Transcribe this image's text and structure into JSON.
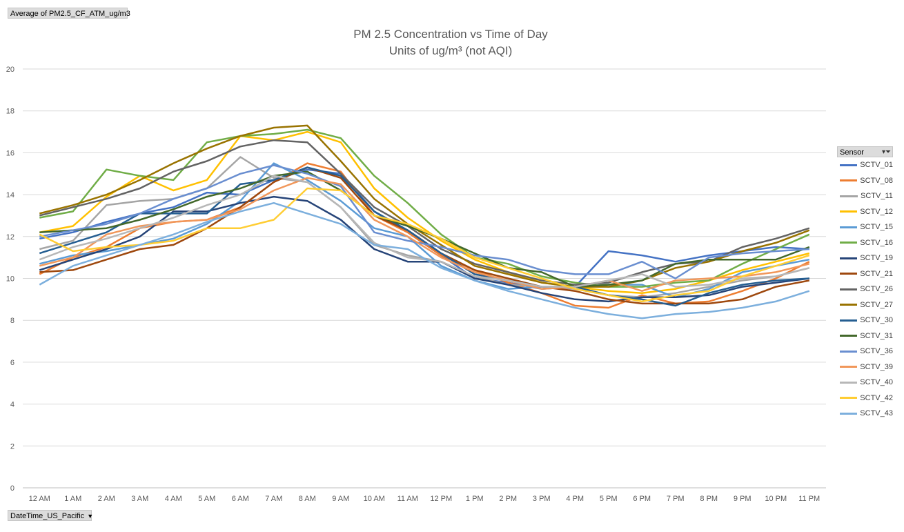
{
  "value_field_label": "Average of PM2.5_CF_ATM_ug/m3",
  "axis_field_label": "DateTime_US_Pacific",
  "axis_field_arrow": "▼",
  "legend": {
    "header": "Sensor",
    "filter_icon": "▾⏷"
  },
  "chart_data": {
    "type": "line",
    "title": "PM 2.5 Concentration vs Time of Day",
    "subtitle": "Units of ug/m³ (not AQI)",
    "xlabel": "",
    "ylabel": "",
    "ylim": [
      0,
      20
    ],
    "yticks": [
      0,
      2,
      4,
      6,
      8,
      10,
      12,
      14,
      16,
      18,
      20
    ],
    "grid": true,
    "legend_position": "right",
    "categories": [
      "12 AM",
      "1 AM",
      "2 AM",
      "3 AM",
      "4 AM",
      "5 AM",
      "6 AM",
      "7 AM",
      "8 AM",
      "9 AM",
      "10 AM",
      "11 AM",
      "12 PM",
      "1 PM",
      "2 PM",
      "3 PM",
      "4 PM",
      "5 PM",
      "6 PM",
      "7 PM",
      "8 PM",
      "9 PM",
      "10 PM",
      "11 PM"
    ],
    "series": [
      {
        "name": "SCTV_01",
        "color": "#4472c4",
        "values": [
          11.9,
          12.2,
          12.7,
          13.1,
          13.4,
          14.1,
          14.0,
          14.7,
          15.2,
          15.0,
          13.2,
          12.2,
          11.1,
          10.0,
          9.8,
          9.5,
          9.6,
          11.3,
          11.1,
          10.8,
          11.1,
          11.3,
          11.5,
          11.4
        ]
      },
      {
        "name": "SCTV_08",
        "color": "#ed7d31",
        "values": [
          10.2,
          11.0,
          11.5,
          12.4,
          12.7,
          12.8,
          13.4,
          14.6,
          15.5,
          15.1,
          13.0,
          12.2,
          11.1,
          10.4,
          9.8,
          9.3,
          8.7,
          8.6,
          9.2,
          8.8,
          8.9,
          9.4,
          10.0,
          10.8
        ]
      },
      {
        "name": "SCTV_11",
        "color": "#a5a5a5",
        "values": [
          11.4,
          11.8,
          13.5,
          13.7,
          13.8,
          14.3,
          15.8,
          14.8,
          14.6,
          13.4,
          11.6,
          11.1,
          10.8,
          10.1,
          9.7,
          9.6,
          9.5,
          9.2,
          9.1,
          9.3,
          9.6,
          9.9,
          10.1,
          10.5
        ]
      },
      {
        "name": "SCTV_12",
        "color": "#ffc000",
        "values": [
          12.2,
          12.5,
          13.9,
          14.9,
          14.2,
          14.7,
          16.8,
          16.6,
          17.0,
          16.5,
          14.3,
          12.9,
          11.8,
          10.9,
          10.3,
          9.8,
          9.6,
          9.4,
          9.3,
          9.5,
          9.9,
          10.4,
          10.8,
          11.2
        ]
      },
      {
        "name": "SCTV_15",
        "color": "#5b9bd5",
        "values": [
          10.7,
          11.1,
          11.3,
          11.6,
          11.9,
          12.6,
          13.7,
          15.5,
          14.7,
          13.7,
          12.4,
          12.0,
          10.6,
          9.9,
          9.5,
          9.6,
          9.6,
          9.7,
          9.7,
          9.1,
          9.5,
          10.3,
          10.6,
          10.9
        ]
      },
      {
        "name": "SCTV_16",
        "color": "#70ad47",
        "values": [
          12.9,
          13.2,
          15.2,
          14.9,
          14.7,
          16.5,
          16.8,
          16.9,
          17.1,
          16.7,
          14.9,
          13.6,
          12.1,
          11.0,
          10.7,
          10.1,
          9.8,
          9.6,
          9.6,
          9.8,
          9.9,
          10.7,
          11.4,
          12.1
        ]
      },
      {
        "name": "SCTV_19",
        "color": "#264478",
        "values": [
          10.4,
          10.9,
          11.4,
          12.0,
          13.2,
          13.2,
          13.6,
          13.9,
          13.7,
          12.8,
          11.4,
          10.8,
          10.8,
          10.0,
          9.7,
          9.3,
          9.0,
          8.9,
          9.1,
          9.1,
          9.2,
          9.6,
          9.8,
          10.0
        ]
      },
      {
        "name": "SCTV_21",
        "color": "#9e480e",
        "values": [
          10.3,
          10.4,
          10.9,
          11.4,
          11.6,
          12.4,
          13.4,
          14.6,
          15.3,
          14.8,
          13.0,
          12.3,
          11.2,
          10.4,
          10.0,
          9.6,
          9.4,
          9.0,
          8.8,
          8.8,
          8.8,
          9.0,
          9.6,
          9.9
        ]
      },
      {
        "name": "SCTV_26",
        "color": "#636363",
        "values": [
          13.0,
          13.4,
          13.8,
          14.3,
          15.1,
          15.6,
          16.3,
          16.6,
          16.5,
          15.0,
          13.4,
          12.5,
          11.4,
          10.7,
          10.3,
          9.9,
          9.7,
          9.8,
          10.3,
          10.7,
          10.8,
          11.5,
          11.9,
          12.4
        ]
      },
      {
        "name": "SCTV_27",
        "color": "#997300",
        "values": [
          13.1,
          13.5,
          14.0,
          14.7,
          15.5,
          16.2,
          16.8,
          17.2,
          17.3,
          15.6,
          13.8,
          12.6,
          11.6,
          10.6,
          10.2,
          9.8,
          9.6,
          9.6,
          9.9,
          10.5,
          10.8,
          11.3,
          11.7,
          12.3
        ]
      },
      {
        "name": "SCTV_30",
        "color": "#255e91",
        "values": [
          11.2,
          11.7,
          12.2,
          13.1,
          13.1,
          13.1,
          14.5,
          14.7,
          15.3,
          14.9,
          13.2,
          12.3,
          11.2,
          10.2,
          9.9,
          9.6,
          9.6,
          9.2,
          9.0,
          8.7,
          9.3,
          9.7,
          9.9,
          10.0
        ]
      },
      {
        "name": "SCTV_31",
        "color": "#43682b",
        "values": [
          12.2,
          12.3,
          12.4,
          12.8,
          13.3,
          13.9,
          14.3,
          14.9,
          15.1,
          14.2,
          13.0,
          12.5,
          11.9,
          11.2,
          10.5,
          10.3,
          9.6,
          9.7,
          9.9,
          10.7,
          10.9,
          10.9,
          10.9,
          11.5
        ]
      },
      {
        "name": "SCTV_36",
        "color": "#698ed0",
        "values": [
          12.0,
          12.3,
          12.6,
          13.1,
          13.8,
          14.3,
          15.0,
          15.4,
          15.0,
          14.4,
          12.2,
          11.8,
          11.5,
          11.1,
          10.9,
          10.4,
          10.2,
          10.2,
          10.8,
          10.0,
          11.0,
          11.2,
          11.3,
          11.4
        ]
      },
      {
        "name": "SCTV_39",
        "color": "#f1975a",
        "values": [
          10.6,
          11.0,
          12.1,
          12.5,
          12.7,
          12.8,
          13.3,
          14.2,
          14.8,
          14.5,
          12.8,
          12.0,
          11.0,
          10.3,
          9.9,
          9.5,
          9.6,
          9.9,
          9.4,
          9.9,
          10.0,
          10.1,
          10.3,
          10.7
        ]
      },
      {
        "name": "SCTV_40",
        "color": "#b7b7b7",
        "values": [
          10.9,
          11.5,
          11.9,
          12.4,
          12.9,
          13.5,
          14.0,
          14.9,
          14.6,
          13.4,
          11.7,
          11.0,
          10.8,
          10.1,
          9.9,
          9.6,
          9.6,
          9.9,
          10.2,
          9.6,
          9.7,
          10.0,
          10.1,
          10.5
        ]
      },
      {
        "name": "SCTV_42",
        "color": "#ffcd33",
        "values": [
          12.1,
          11.3,
          11.5,
          11.6,
          11.8,
          12.4,
          12.4,
          12.8,
          14.3,
          14.2,
          13.0,
          12.6,
          11.9,
          11.0,
          10.5,
          10.0,
          9.5,
          9.2,
          8.9,
          9.2,
          9.4,
          10.1,
          10.6,
          11.1
        ]
      },
      {
        "name": "SCTV_43",
        "color": "#7cafdd",
        "values": [
          9.7,
          10.6,
          11.1,
          11.6,
          12.1,
          12.7,
          13.2,
          13.6,
          13.1,
          12.6,
          11.6,
          11.4,
          10.5,
          9.9,
          9.4,
          9.0,
          8.6,
          8.3,
          8.1,
          8.3,
          8.4,
          8.6,
          8.9,
          9.4
        ]
      }
    ]
  }
}
